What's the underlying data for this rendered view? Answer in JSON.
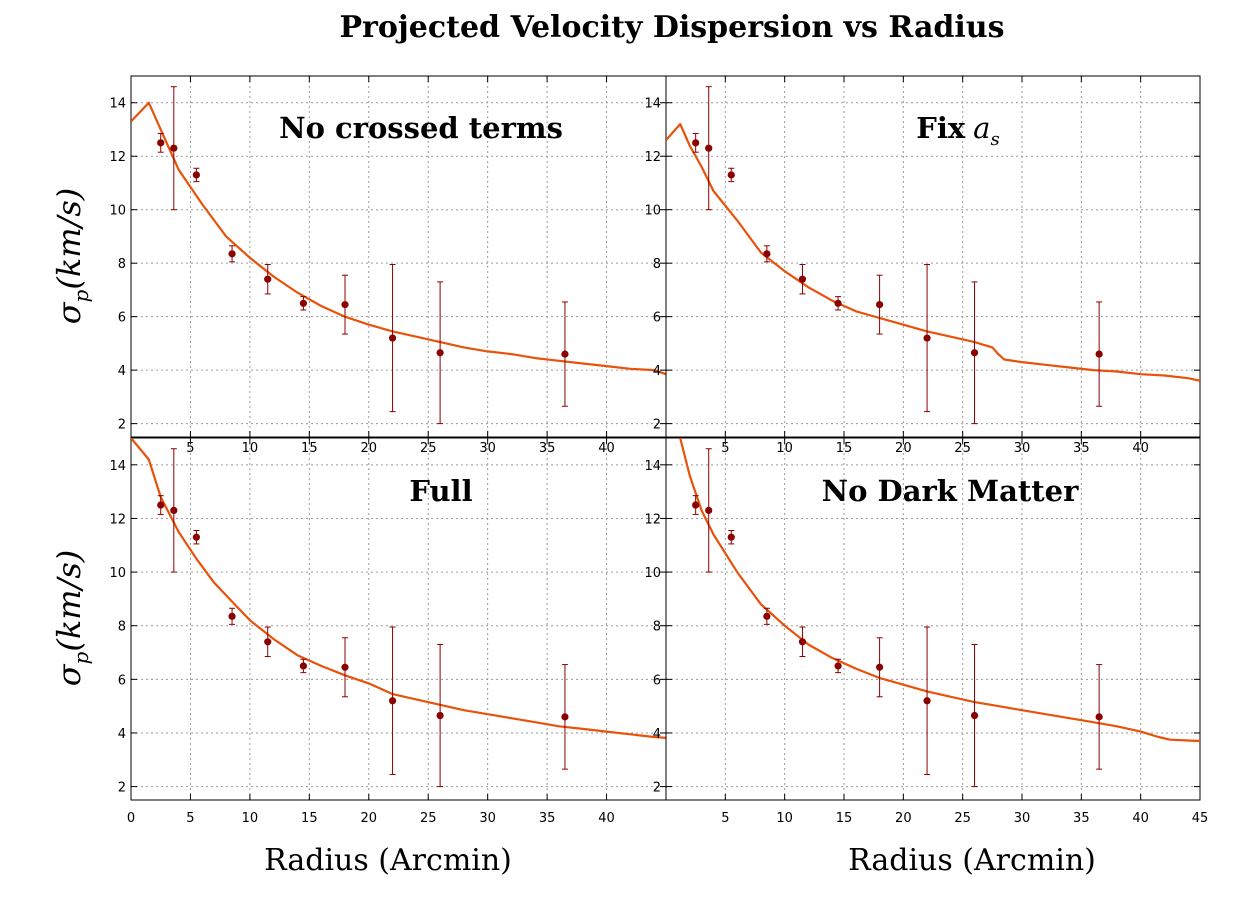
{
  "figure": {
    "title": "Projected Velocity Dispersion vs Radius",
    "xlabel": "Radius (Arcmin)",
    "ylabel": {
      "sym": "σ",
      "sub": "p",
      "rest": "(km/s)"
    }
  },
  "colors": {
    "model_line": "#e8520a",
    "data_points": "#8b0000",
    "grid": "#9a9a9a",
    "axes": "#000000"
  },
  "chart_data": [
    {
      "type": "line",
      "panel": "top-left",
      "title": "No crossed terms",
      "xlim": [
        0,
        45
      ],
      "ylim": [
        1.5,
        15
      ],
      "xticks": [
        5,
        10,
        15,
        20,
        25,
        30,
        35,
        40
      ],
      "yticks": [
        2,
        4,
        6,
        8,
        10,
        12,
        14
      ],
      "grid": true,
      "series": [
        {
          "x": [
            0,
            1.5,
            2.5,
            4.0,
            6.0,
            8.0,
            10.0,
            12.0,
            14.0,
            16.0,
            18.0,
            20.0,
            22.0,
            24.0,
            26.0,
            28.0,
            30.0,
            32.0,
            34.0,
            36.0,
            38.0,
            40.0,
            42.0,
            44.0,
            45.0
          ],
          "y": [
            13.3,
            14.0,
            13.0,
            11.5,
            10.2,
            9.0,
            8.2,
            7.5,
            6.9,
            6.4,
            6.0,
            5.7,
            5.45,
            5.25,
            5.05,
            4.85,
            4.7,
            4.6,
            4.45,
            4.35,
            4.25,
            4.15,
            4.05,
            4.0,
            3.85
          ]
        },
        {
          "type": "errorbar",
          "x": [
            2.5,
            3.6,
            5.5,
            8.5,
            11.5,
            14.5,
            18.0,
            22.0,
            26.0,
            36.5
          ],
          "y": [
            12.5,
            12.3,
            11.3,
            8.35,
            7.4,
            6.5,
            6.45,
            5.2,
            4.65,
            4.6
          ],
          "err": [
            0.35,
            2.3,
            0.25,
            0.3,
            0.55,
            0.25,
            1.1,
            2.75,
            2.65,
            1.95
          ]
        }
      ]
    },
    {
      "type": "line",
      "panel": "top-right",
      "title": "Fix",
      "title_math": "a",
      "title_math_sub": "s",
      "xlim": [
        0,
        45
      ],
      "ylim": [
        1.5,
        15
      ],
      "xticks": [
        5,
        10,
        15,
        20,
        25,
        30,
        35,
        40
      ],
      "yticks": [
        2,
        4,
        6,
        8,
        10,
        12,
        14
      ],
      "grid": true,
      "series": [
        {
          "x": [
            0,
            1.2,
            2.0,
            3.0,
            4.0,
            6.0,
            8.0,
            10.0,
            12.0,
            14.0,
            16.0,
            18.0,
            20.0,
            22.0,
            24.0,
            26.0,
            27.5,
            28.0,
            28.5,
            30.0,
            32.0,
            34.0,
            36.0,
            38.0,
            40.0,
            42.0,
            44.0,
            45.0
          ],
          "y": [
            12.6,
            13.2,
            12.4,
            11.6,
            10.7,
            9.6,
            8.4,
            7.7,
            7.1,
            6.6,
            6.2,
            5.95,
            5.7,
            5.45,
            5.25,
            5.05,
            4.85,
            4.6,
            4.4,
            4.3,
            4.2,
            4.1,
            4.0,
            3.95,
            3.85,
            3.8,
            3.7,
            3.6
          ]
        },
        {
          "type": "errorbar",
          "x": [
            2.5,
            3.6,
            5.5,
            8.5,
            11.5,
            14.5,
            18.0,
            22.0,
            26.0,
            36.5
          ],
          "y": [
            12.5,
            12.3,
            11.3,
            8.35,
            7.4,
            6.5,
            6.45,
            5.2,
            4.65,
            4.6
          ],
          "err": [
            0.35,
            2.3,
            0.25,
            0.3,
            0.55,
            0.25,
            1.1,
            2.75,
            2.65,
            1.95
          ]
        }
      ]
    },
    {
      "type": "line",
      "panel": "bottom-left",
      "title": "Full",
      "xlim": [
        0,
        45
      ],
      "ylim": [
        1.5,
        15
      ],
      "xticks": [
        0,
        5,
        10,
        15,
        20,
        25,
        30,
        35,
        40
      ],
      "yticks": [
        2,
        4,
        6,
        8,
        10,
        12,
        14
      ],
      "grid": true,
      "series": [
        {
          "x": [
            0,
            1.5,
            2.5,
            4.0,
            5.5,
            7.0,
            8.5,
            10.0,
            12.0,
            14.0,
            16.0,
            18.0,
            20.0,
            22.0,
            24.0,
            26.0,
            28.0,
            30.0,
            32.0,
            34.0,
            36.0,
            38.0,
            40.0,
            42.0,
            44.0,
            45.0
          ],
          "y": [
            15.0,
            14.2,
            12.8,
            11.5,
            10.5,
            9.6,
            8.9,
            8.2,
            7.5,
            6.9,
            6.5,
            6.15,
            5.85,
            5.45,
            5.25,
            5.05,
            4.85,
            4.7,
            4.55,
            4.4,
            4.25,
            4.15,
            4.05,
            3.95,
            3.85,
            3.82
          ]
        },
        {
          "type": "errorbar",
          "x": [
            2.5,
            3.6,
            5.5,
            8.5,
            11.5,
            14.5,
            18.0,
            22.0,
            26.0,
            36.5
          ],
          "y": [
            12.5,
            12.3,
            11.3,
            8.35,
            7.4,
            6.5,
            6.45,
            5.2,
            4.65,
            4.6
          ],
          "err": [
            0.35,
            2.3,
            0.25,
            0.3,
            0.55,
            0.25,
            1.1,
            2.75,
            2.65,
            1.95
          ]
        }
      ]
    },
    {
      "type": "line",
      "panel": "bottom-right",
      "title": "No Dark Matter",
      "xlim": [
        0,
        45
      ],
      "ylim": [
        1.5,
        15
      ],
      "xticks": [
        5,
        10,
        15,
        20,
        25,
        30,
        35,
        40,
        45
      ],
      "yticks": [
        2,
        4,
        6,
        8,
        10,
        12,
        14
      ],
      "grid": true,
      "series": [
        {
          "x": [
            1.2,
            2.0,
            3.0,
            4.0,
            6.0,
            8.0,
            10.0,
            12.0,
            14.0,
            16.0,
            18.0,
            20.0,
            22.0,
            24.0,
            26.0,
            28.0,
            30.0,
            32.0,
            34.0,
            36.0,
            38.0,
            40.0,
            41.5,
            42.5,
            44.0,
            45.0
          ],
          "y": [
            15.0,
            13.6,
            12.3,
            11.4,
            10.0,
            8.8,
            8.0,
            7.3,
            6.8,
            6.4,
            6.05,
            5.8,
            5.55,
            5.35,
            5.15,
            5.0,
            4.85,
            4.7,
            4.55,
            4.4,
            4.25,
            4.05,
            3.85,
            3.75,
            3.72,
            3.7
          ]
        },
        {
          "type": "errorbar",
          "x": [
            2.5,
            3.6,
            5.5,
            8.5,
            11.5,
            14.5,
            18.0,
            22.0,
            26.0,
            36.5
          ],
          "y": [
            12.5,
            12.3,
            11.3,
            8.35,
            7.4,
            6.5,
            6.45,
            5.2,
            4.65,
            4.6
          ],
          "err": [
            0.35,
            2.3,
            0.25,
            0.3,
            0.55,
            0.25,
            1.1,
            2.75,
            2.65,
            1.95
          ]
        }
      ]
    }
  ]
}
